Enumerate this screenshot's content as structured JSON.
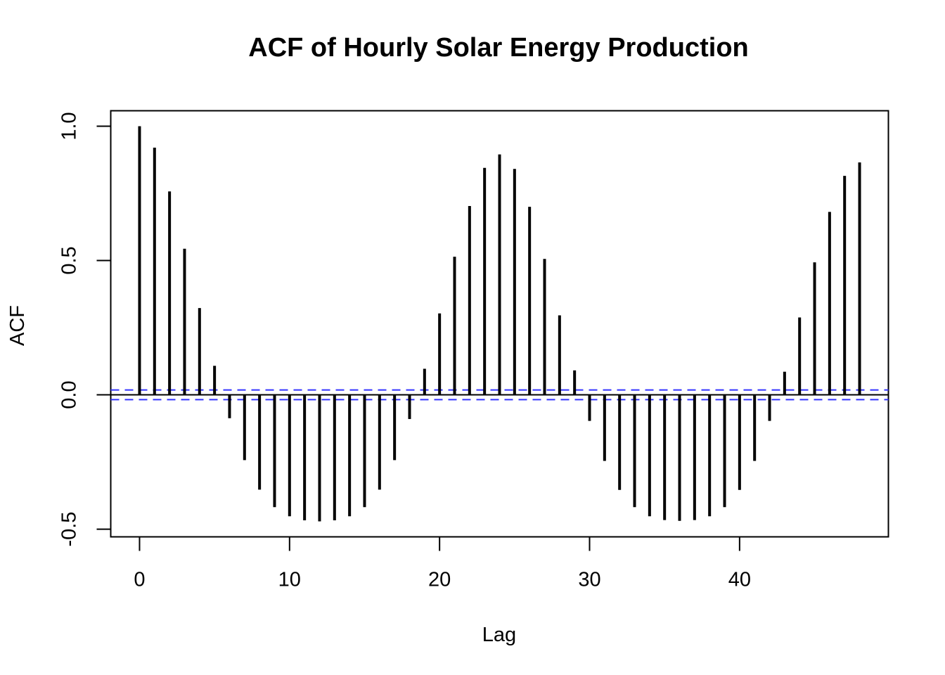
{
  "chart_data": {
    "type": "bar",
    "subtype": "acf-stem",
    "title": "ACF of Hourly Solar Energy Production",
    "xlabel": "Lag",
    "ylabel": "ACF",
    "xlim": [
      -1.92,
      49.92
    ],
    "ylim": [
      -0.5286,
      1.0575
    ],
    "x_ticks": [
      0,
      10,
      20,
      30,
      40
    ],
    "x_tick_labels": [
      "0",
      "10",
      "20",
      "30",
      "40"
    ],
    "y_ticks": [
      -0.5,
      0.0,
      0.5,
      1.0
    ],
    "y_tick_labels": [
      "-0.5",
      "0.0",
      "0.5",
      "1.0"
    ],
    "confidence_bound": 0.018,
    "colors": {
      "bars": "#000000",
      "confidence_lines": "#3333ff",
      "zero_line": "#000000",
      "frame": "#000000"
    },
    "grid": false,
    "x": [
      0,
      1,
      2,
      3,
      4,
      5,
      6,
      7,
      8,
      9,
      10,
      11,
      12,
      13,
      14,
      15,
      16,
      17,
      18,
      19,
      20,
      21,
      22,
      23,
      24,
      25,
      26,
      27,
      28,
      29,
      30,
      31,
      32,
      33,
      34,
      35,
      36,
      37,
      38,
      39,
      40,
      41,
      42,
      43,
      44,
      45,
      46,
      47,
      48
    ],
    "values": [
      1.0,
      0.92,
      0.757,
      0.544,
      0.323,
      0.108,
      -0.087,
      -0.243,
      -0.353,
      -0.418,
      -0.452,
      -0.467,
      -0.471,
      -0.467,
      -0.452,
      -0.418,
      -0.353,
      -0.243,
      -0.09,
      0.097,
      0.303,
      0.514,
      0.703,
      0.845,
      0.895,
      0.841,
      0.7,
      0.506,
      0.296,
      0.091,
      -0.097,
      -0.246,
      -0.354,
      -0.418,
      -0.452,
      -0.466,
      -0.469,
      -0.466,
      -0.452,
      -0.418,
      -0.354,
      -0.246,
      -0.097,
      0.086,
      0.288,
      0.493,
      0.681,
      0.815,
      0.865
    ]
  }
}
